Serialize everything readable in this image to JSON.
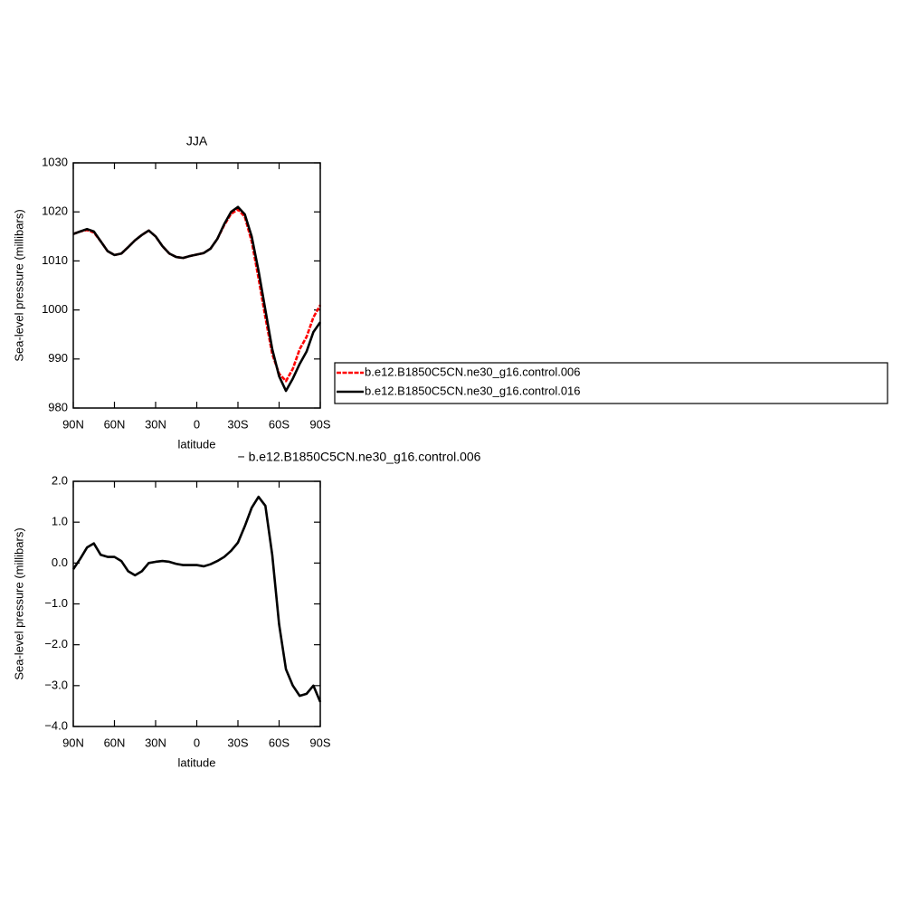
{
  "chart_data": [
    {
      "type": "line",
      "title": "JJA",
      "xlabel": "latitude",
      "ylabel": "Sea-level pressure (millibars)",
      "x": [
        90,
        85,
        80,
        75,
        70,
        65,
        60,
        55,
        50,
        45,
        40,
        35,
        30,
        25,
        20,
        15,
        10,
        5,
        0,
        -5,
        -10,
        -15,
        -20,
        -25,
        -30,
        -35,
        -40,
        -45,
        -50,
        -55,
        -60,
        -65,
        -70,
        -75,
        -80,
        -85,
        -90
      ],
      "series": [
        {
          "name": "b.e12.B1850C5CN.ne30_g16.control.006",
          "color": "#ff0000",
          "line_style": "dashed",
          "values": [
            1015.5,
            1016,
            1016.3,
            1015.8,
            1014,
            1012,
            1011.2,
            1011.5,
            1012.8,
            1014.2,
            1015.3,
            1016.2,
            1015,
            1013,
            1011.5,
            1010.8,
            1010.6,
            1011,
            1011.3,
            1011.6,
            1012.5,
            1014.5,
            1017.3,
            1019.6,
            1020.5,
            1019,
            1014,
            1006.5,
            998.5,
            991,
            987,
            985.5,
            988,
            992,
            994.5,
            998.5,
            1001
          ]
        },
        {
          "name": "b.e12.B1850C5CN.ne30_g16.control.016",
          "color": "#000000",
          "line_style": "solid",
          "values": [
            1015.5,
            1016,
            1016.5,
            1016,
            1014,
            1012,
            1011.2,
            1011.5,
            1012.8,
            1014.2,
            1015.3,
            1016.2,
            1015,
            1013,
            1011.5,
            1010.8,
            1010.6,
            1011,
            1011.3,
            1011.6,
            1012.5,
            1014.5,
            1017.5,
            1020,
            1021,
            1019.5,
            1015,
            1008,
            1000,
            992,
            986.5,
            983.5,
            986,
            989,
            991.5,
            995.5,
            997.5
          ]
        }
      ],
      "xlim": [
        90,
        -90
      ],
      "xticks": [
        {
          "value": 90,
          "label": "90N"
        },
        {
          "value": 60,
          "label": "60N"
        },
        {
          "value": 30,
          "label": "30N"
        },
        0,
        {
          "value": -30,
          "label": "30S"
        },
        {
          "value": -60,
          "label": "60S"
        },
        {
          "value": -90,
          "label": "90S"
        }
      ],
      "ylim": [
        980,
        1030
      ],
      "yticks": [
        980,
        990,
        1000,
        1010,
        1020,
        1030
      ],
      "legend": "right"
    },
    {
      "type": "line",
      "title": "− b.e12.B1850C5CN.ne30_g16.control.006",
      "xlabel": "latitude",
      "ylabel": "Sea-level pressure (millibars)",
      "x": [
        90,
        85,
        80,
        75,
        70,
        65,
        60,
        55,
        50,
        45,
        40,
        35,
        30,
        25,
        20,
        15,
        10,
        5,
        0,
        -5,
        -10,
        -15,
        -20,
        -25,
        -30,
        -35,
        -40,
        -45,
        -50,
        -55,
        -60,
        -65,
        -70,
        -75,
        -80,
        -85,
        -90
      ],
      "series": [
        {
          "color": "#000000",
          "line_style": "solid",
          "values": [
            -0.15,
            0.1,
            0.38,
            0.48,
            0.2,
            0.15,
            0.15,
            0.05,
            -0.2,
            -0.3,
            -0.2,
            0,
            0.03,
            0.05,
            0.03,
            -0.02,
            -0.05,
            -0.05,
            -0.05,
            -0.08,
            -0.03,
            0.05,
            0.15,
            0.3,
            0.5,
            0.9,
            1.35,
            1.62,
            1.4,
            0.2,
            -1.5,
            -2.6,
            -3.0,
            -3.25,
            -3.2,
            -3.0,
            -3.4
          ]
        }
      ],
      "xlim": [
        90,
        -90
      ],
      "xticks": [
        {
          "value": 90,
          "label": "90N"
        },
        {
          "value": 60,
          "label": "60N"
        },
        {
          "value": 30,
          "label": "30N"
        },
        0,
        {
          "value": -30,
          "label": "30S"
        },
        {
          "value": -60,
          "label": "60S"
        },
        {
          "value": -90,
          "label": "90S"
        }
      ],
      "ylim": [
        -4,
        2
      ],
      "yticks": [
        {
          "value": -4,
          "label": "−4.0"
        },
        {
          "value": -3,
          "label": "−3.0"
        },
        {
          "value": -2,
          "label": "−2.0"
        },
        {
          "value": -1,
          "label": "−1.0"
        },
        {
          "value": 0,
          "label": "0.0"
        },
        {
          "value": 1,
          "label": "1.0"
        },
        {
          "value": 2,
          "label": "2.0"
        }
      ]
    }
  ]
}
